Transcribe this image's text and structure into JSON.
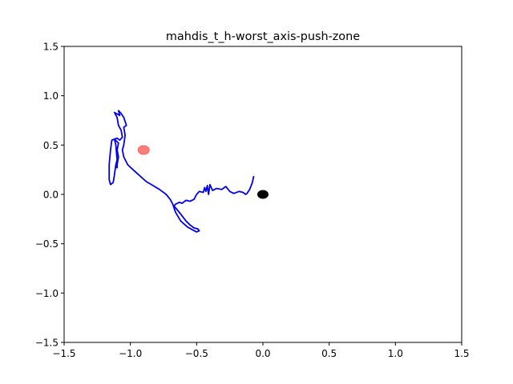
{
  "chart_data": {
    "type": "line",
    "title": "mahdis_t_h-worst_axis-push-zone",
    "xlabel": "",
    "ylabel": "",
    "xlim": [
      -1.5,
      1.5
    ],
    "ylim": [
      -1.5,
      1.5
    ],
    "x_ticks": [
      -1.5,
      -1.0,
      -0.5,
      0.0,
      0.5,
      1.0,
      1.5
    ],
    "y_ticks": [
      -1.5,
      -1.0,
      -0.5,
      0.0,
      0.5,
      1.0,
      1.5
    ],
    "x_tick_labels": [
      "−1.5",
      "−1.0",
      "−0.5",
      "0.0",
      "0.5",
      "1.0",
      "1.5"
    ],
    "y_tick_labels": [
      "−1.5",
      "−1.0",
      "−0.5",
      "0.0",
      "0.5",
      "1.0",
      "1.5"
    ],
    "grid": false,
    "series": [
      {
        "color": "#0000ee",
        "points": [
          [
            -0.07,
            0.18
          ],
          [
            -0.08,
            0.12
          ],
          [
            -0.1,
            0.05
          ],
          [
            -0.12,
            0.01
          ],
          [
            -0.13,
            0.0
          ],
          [
            -0.15,
            0.02
          ],
          [
            -0.18,
            0.03
          ],
          [
            -0.22,
            0.01
          ],
          [
            -0.25,
            0.03
          ],
          [
            -0.28,
            0.08
          ],
          [
            -0.31,
            0.05
          ],
          [
            -0.35,
            0.06
          ],
          [
            -0.38,
            0.04
          ],
          [
            -0.4,
            0.1
          ],
          [
            -0.41,
            0.0
          ],
          [
            -0.42,
            0.09
          ],
          [
            -0.43,
            0.03
          ],
          [
            -0.44,
            0.07
          ],
          [
            -0.45,
            0.02
          ],
          [
            -0.48,
            0.03
          ],
          [
            -0.5,
            0.0
          ],
          [
            -0.52,
            -0.05
          ],
          [
            -0.55,
            -0.07
          ],
          [
            -0.58,
            -0.06
          ],
          [
            -0.61,
            -0.09
          ],
          [
            -0.63,
            -0.08
          ],
          [
            -0.66,
            -0.1
          ],
          [
            -0.67,
            -0.12
          ],
          [
            -0.65,
            -0.15
          ],
          [
            -0.62,
            -0.2
          ],
          [
            -0.58,
            -0.27
          ],
          [
            -0.55,
            -0.31
          ],
          [
            -0.52,
            -0.34
          ],
          [
            -0.49,
            -0.35
          ],
          [
            -0.48,
            -0.37
          ],
          [
            -0.5,
            -0.38
          ],
          [
            -0.53,
            -0.36
          ],
          [
            -0.57,
            -0.33
          ],
          [
            -0.62,
            -0.27
          ],
          [
            -0.66,
            -0.18
          ],
          [
            -0.68,
            -0.1
          ],
          [
            -0.7,
            -0.05
          ],
          [
            -0.73,
            0.0
          ],
          [
            -0.78,
            0.05
          ],
          [
            -0.83,
            0.09
          ],
          [
            -0.88,
            0.13
          ],
          [
            -0.93,
            0.19
          ],
          [
            -0.98,
            0.25
          ],
          [
            -1.02,
            0.3
          ],
          [
            -1.05,
            0.38
          ],
          [
            -1.06,
            0.45
          ],
          [
            -1.05,
            0.5
          ],
          [
            -1.04,
            0.6
          ],
          [
            -1.05,
            0.68
          ],
          [
            -1.03,
            0.7
          ],
          [
            -1.05,
            0.78
          ],
          [
            -1.07,
            0.82
          ],
          [
            -1.09,
            0.85
          ],
          [
            -1.08,
            0.8
          ],
          [
            -1.12,
            0.83
          ],
          [
            -1.1,
            0.78
          ],
          [
            -1.09,
            0.7
          ],
          [
            -1.07,
            0.65
          ],
          [
            -1.06,
            0.58
          ],
          [
            -1.08,
            0.55
          ],
          [
            -1.1,
            0.57
          ],
          [
            -1.12,
            0.56
          ],
          [
            -1.09,
            0.52
          ],
          [
            -1.1,
            0.45
          ],
          [
            -1.09,
            0.38
          ],
          [
            -1.1,
            0.3
          ],
          [
            -1.1,
            0.27
          ],
          [
            -1.11,
            0.3
          ],
          [
            -1.1,
            0.35
          ],
          [
            -1.11,
            0.5
          ],
          [
            -1.12,
            0.56
          ],
          [
            -1.14,
            0.55
          ],
          [
            -1.15,
            0.45
          ],
          [
            -1.16,
            0.3
          ],
          [
            -1.16,
            0.15
          ],
          [
            -1.15,
            0.1
          ],
          [
            -1.13,
            0.12
          ],
          [
            -1.12,
            0.2
          ],
          [
            -1.11,
            0.3
          ]
        ]
      }
    ],
    "markers": [
      {
        "x": -0.9,
        "y": 0.45,
        "color": "#ff6666"
      },
      {
        "x": 0.0,
        "y": 0.0,
        "color": "#000000"
      }
    ]
  }
}
